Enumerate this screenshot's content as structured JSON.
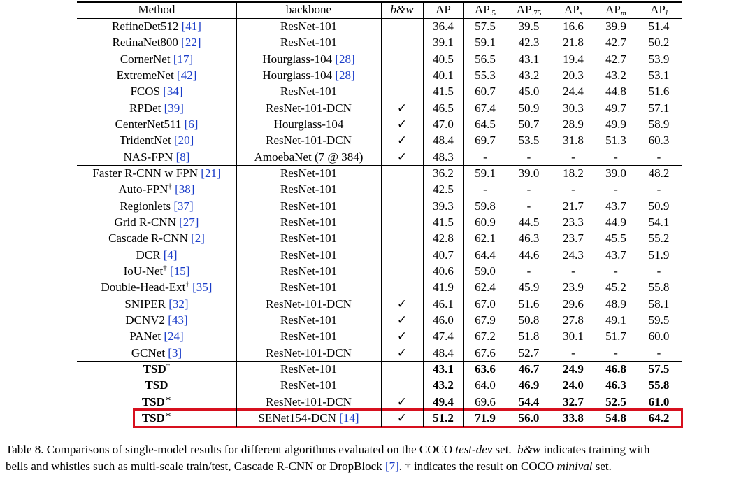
{
  "table": {
    "header": [
      {
        "text": "Method"
      },
      {
        "text": "backbone"
      },
      {
        "text": "b&w",
        "italic": true
      },
      {
        "text": "AP"
      },
      {
        "text": "AP",
        "sub": ".5"
      },
      {
        "text": "AP",
        "sub": ".75"
      },
      {
        "text": "AP",
        "sub": "s",
        "sub_italic": true
      },
      {
        "text": "AP",
        "sub": "m",
        "sub_italic": true
      },
      {
        "text": "AP",
        "sub": "l",
        "sub_italic": true
      }
    ],
    "groups": [
      [
        {
          "method": "RefineDet512",
          "cite": "[41]",
          "backbone": "ResNet-101",
          "values": [
            "36.4",
            "57.5",
            "39.5",
            "16.6",
            "39.9",
            "51.4"
          ]
        },
        {
          "method": "RetinaNet800",
          "cite": "[22]",
          "backbone": "ResNet-101",
          "values": [
            "39.1",
            "59.1",
            "42.3",
            "21.8",
            "42.7",
            "50.2"
          ]
        },
        {
          "method": "CornerNet",
          "cite": "[17]",
          "backbone": "Hourglass-104",
          "backbone_cite": "[28]",
          "values": [
            "40.5",
            "56.5",
            "43.1",
            "19.4",
            "42.7",
            "53.9"
          ]
        },
        {
          "method": "ExtremeNet",
          "cite": "[42]",
          "backbone": "Hourglass-104",
          "backbone_cite": "[28]",
          "values": [
            "40.1",
            "55.3",
            "43.2",
            "20.3",
            "43.2",
            "53.1"
          ]
        },
        {
          "method": "FCOS",
          "cite": "[34]",
          "backbone": "ResNet-101",
          "values": [
            "41.5",
            "60.7",
            "45.0",
            "24.4",
            "44.8",
            "51.6"
          ]
        },
        {
          "method": "RPDet",
          "cite": "[39]",
          "backbone": "ResNet-101-DCN",
          "bw": "✓",
          "values": [
            "46.5",
            "67.4",
            "50.9",
            "30.3",
            "49.7",
            "57.1"
          ]
        },
        {
          "method": "CenterNet511",
          "cite": "[6]",
          "backbone": "Hourglass-104",
          "bw": "✓",
          "values": [
            "47.0",
            "64.5",
            "50.7",
            "28.9",
            "49.9",
            "58.9"
          ]
        },
        {
          "method": "TridentNet",
          "cite": "[20]",
          "backbone": "ResNet-101-DCN",
          "bw": "✓",
          "values": [
            "48.4",
            "69.7",
            "53.5",
            "31.8",
            "51.3",
            "60.3"
          ]
        },
        {
          "method": "NAS-FPN",
          "cite": "[8]",
          "backbone": "AmoebaNet (7 @ 384)",
          "bw": "✓",
          "values": [
            "48.3",
            "-",
            "-",
            "-",
            "-",
            "-"
          ]
        }
      ],
      [
        {
          "method": "Faster R-CNN w FPN",
          "cite": "[21]",
          "backbone": "ResNet-101",
          "values": [
            "36.2",
            "59.1",
            "39.0",
            "18.2",
            "39.0",
            "48.2"
          ]
        },
        {
          "method": "Auto-FPN",
          "mark": "†",
          "cite": "[38]",
          "backbone": "ResNet-101",
          "values": [
            "42.5",
            "-",
            "-",
            "-",
            "-",
            "-"
          ]
        },
        {
          "method": "Regionlets",
          "cite": "[37]",
          "backbone": "ResNet-101",
          "values": [
            "39.3",
            "59.8",
            "-",
            "21.7",
            "43.7",
            "50.9"
          ]
        },
        {
          "method": "Grid R-CNN",
          "cite": "[27]",
          "backbone": "ResNet-101",
          "values": [
            "41.5",
            "60.9",
            "44.5",
            "23.3",
            "44.9",
            "54.1"
          ]
        },
        {
          "method": "Cascade R-CNN",
          "cite": "[2]",
          "backbone": "ResNet-101",
          "values": [
            "42.8",
            "62.1",
            "46.3",
            "23.7",
            "45.5",
            "55.2"
          ]
        },
        {
          "method": "DCR",
          "cite": "[4]",
          "backbone": "ResNet-101",
          "values": [
            "40.7",
            "64.4",
            "44.6",
            "24.3",
            "43.7",
            "51.9"
          ]
        },
        {
          "method": "IoU-Net",
          "mark": "†",
          "cite": "[15]",
          "backbone": "ResNet-101",
          "values": [
            "40.6",
            "59.0",
            "-",
            "-",
            "-",
            "-"
          ]
        },
        {
          "method": "Double-Head-Ext",
          "mark": "†",
          "cite": "[35]",
          "backbone": "ResNet-101",
          "values": [
            "41.9",
            "62.4",
            "45.9",
            "23.9",
            "45.2",
            "55.8"
          ]
        },
        {
          "method": "SNIPER",
          "cite": "[32]",
          "backbone": "ResNet-101-DCN",
          "bw": "✓",
          "values": [
            "46.1",
            "67.0",
            "51.6",
            "29.6",
            "48.9",
            "58.1"
          ]
        },
        {
          "method": "DCNV2",
          "cite": "[43]",
          "backbone": "ResNet-101",
          "bw": "✓",
          "values": [
            "46.0",
            "67.9",
            "50.8",
            "27.8",
            "49.1",
            "59.5"
          ]
        },
        {
          "method": "PANet",
          "cite": "[24]",
          "backbone": "ResNet-101",
          "bw": "✓",
          "values": [
            "47.4",
            "67.2",
            "51.8",
            "30.1",
            "51.7",
            "60.0"
          ]
        },
        {
          "method": "GCNet",
          "cite": "[3]",
          "backbone": "ResNet-101-DCN",
          "bw": "✓",
          "values": [
            "48.4",
            "67.6",
            "52.7",
            "-",
            "-",
            "-"
          ]
        }
      ],
      [
        {
          "method": "TSD",
          "mark": "†",
          "bold": true,
          "backbone": "ResNet-101",
          "values": [
            "43.1",
            "63.6",
            "46.7",
            "24.9",
            "46.8",
            "57.5"
          ],
          "bold_values": [
            0,
            1,
            2,
            3,
            4,
            5
          ]
        },
        {
          "method": "TSD",
          "bold": true,
          "backbone": "ResNet-101",
          "values": [
            "43.2",
            "64.0",
            "46.9",
            "24.0",
            "46.3",
            "55.8"
          ],
          "bold_values": [
            0,
            2,
            3,
            4,
            5
          ]
        },
        {
          "method": "TSD",
          "mark": "∗",
          "bold": true,
          "backbone": "ResNet-101-DCN",
          "bw": "✓",
          "values": [
            "49.4",
            "69.6",
            "54.4",
            "32.7",
            "52.5",
            "61.0"
          ],
          "bold_values": [
            0,
            2,
            3,
            4,
            5
          ]
        },
        {
          "method": "TSD",
          "mark": "∗",
          "bold": true,
          "backbone": "SENet154-DCN",
          "backbone_cite": "[14]",
          "bw": "✓",
          "values": [
            "51.2",
            "71.9",
            "56.0",
            "33.8",
            "54.8",
            "64.2"
          ],
          "bold_values": [
            0,
            1,
            2,
            3,
            4,
            5
          ],
          "highlight": true
        }
      ]
    ]
  },
  "caption": [
    [
      "Table 8. Comparisons of single-model results for different algorithms evaluated on the COCO ",
      {
        "italic": "test-dev"
      },
      " set.  ",
      {
        "italic": "b&w"
      },
      " indicates training with"
    ],
    [
      "bells and whistles such as multi-scale train/test, Cascade R-CNN or DropBlock ",
      {
        "cite": "[7]"
      },
      ". † indicates the result on COCO ",
      {
        "italic": "minival"
      },
      " set."
    ]
  ]
}
